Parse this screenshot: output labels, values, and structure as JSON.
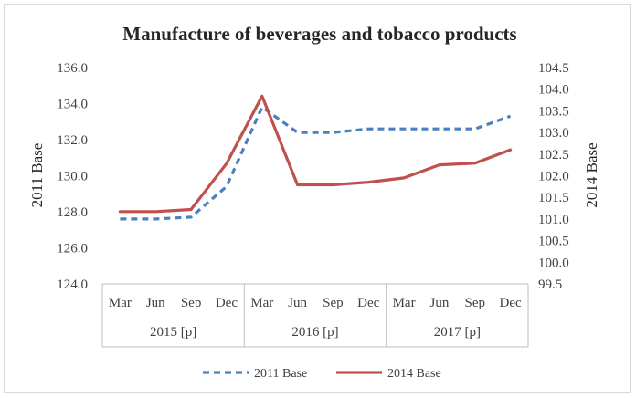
{
  "chart_data": {
    "type": "line",
    "title": "Manufacture of beverages and tobacco products",
    "y_left_label": "2011 Base",
    "y_right_label": "2014 Base",
    "y_left_ticks": [
      "124.0",
      "126.0",
      "128.0",
      "130.0",
      "132.0",
      "134.0",
      "136.0"
    ],
    "y_right_ticks": [
      "99.5",
      "100.0",
      "100.5",
      "101.0",
      "101.5",
      "102.0",
      "102.5",
      "103.0",
      "103.5",
      "104.0",
      "104.5"
    ],
    "y_left_range": [
      124,
      136
    ],
    "y_right_range": [
      99.5,
      104.5
    ],
    "categories": [
      "Mar",
      "Jun",
      "Sep",
      "Dec",
      "Mar",
      "Jun",
      "Sep",
      "Dec",
      "Mar",
      "Jun",
      "Sep",
      "Dec"
    ],
    "groups": [
      {
        "label": "2015 [p]",
        "span": 4
      },
      {
        "label": "2016 [p]",
        "span": 4
      },
      {
        "label": "2017 [p]",
        "span": 4
      }
    ],
    "series": [
      {
        "name": "2011 Base",
        "axis": "left",
        "style": "dashed",
        "color": "#4a7fc1",
        "values": [
          127.6,
          127.6,
          127.7,
          129.4,
          133.8,
          132.4,
          132.4,
          132.6,
          132.6,
          132.6,
          132.6,
          133.3
        ]
      },
      {
        "name": "2014 Base",
        "axis": "right",
        "style": "solid",
        "color": "#c0504d",
        "values": [
          101.17,
          101.17,
          101.22,
          102.28,
          103.84,
          101.79,
          101.79,
          101.85,
          101.95,
          102.25,
          102.29,
          102.6
        ]
      }
    ],
    "legend_position": "bottom",
    "grid": "none"
  }
}
